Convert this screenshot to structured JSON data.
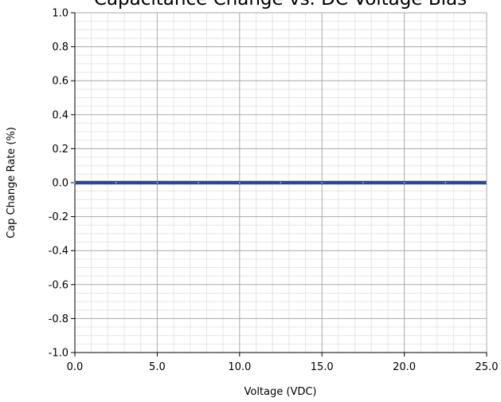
{
  "chart_data": {
    "type": "line",
    "title": "Capacitance Change vs. DC Voltage Bias",
    "xlabel": "Voltage (VDC)",
    "ylabel": "Cap Change Rate (%)",
    "xlim": [
      0.0,
      25.0
    ],
    "ylim": [
      -1.0,
      1.0
    ],
    "xticks": [
      "0.0",
      "5.0",
      "10.0",
      "15.0",
      "20.0",
      "25.0"
    ],
    "yticks": [
      "-1.0",
      "-0.8",
      "-0.6",
      "-0.4",
      "-0.2",
      "0.0",
      "0.2",
      "0.4",
      "0.6",
      "0.8",
      "1.0"
    ],
    "grid": true,
    "series": [
      {
        "x": [
          0,
          2.5,
          5,
          7.5,
          10,
          12.5,
          15,
          17.5,
          20,
          22.5,
          25
        ],
        "values": [
          0,
          0,
          0,
          0,
          0,
          0,
          0,
          0,
          0,
          0,
          0
        ],
        "color": "#2b4a8b"
      }
    ]
  }
}
